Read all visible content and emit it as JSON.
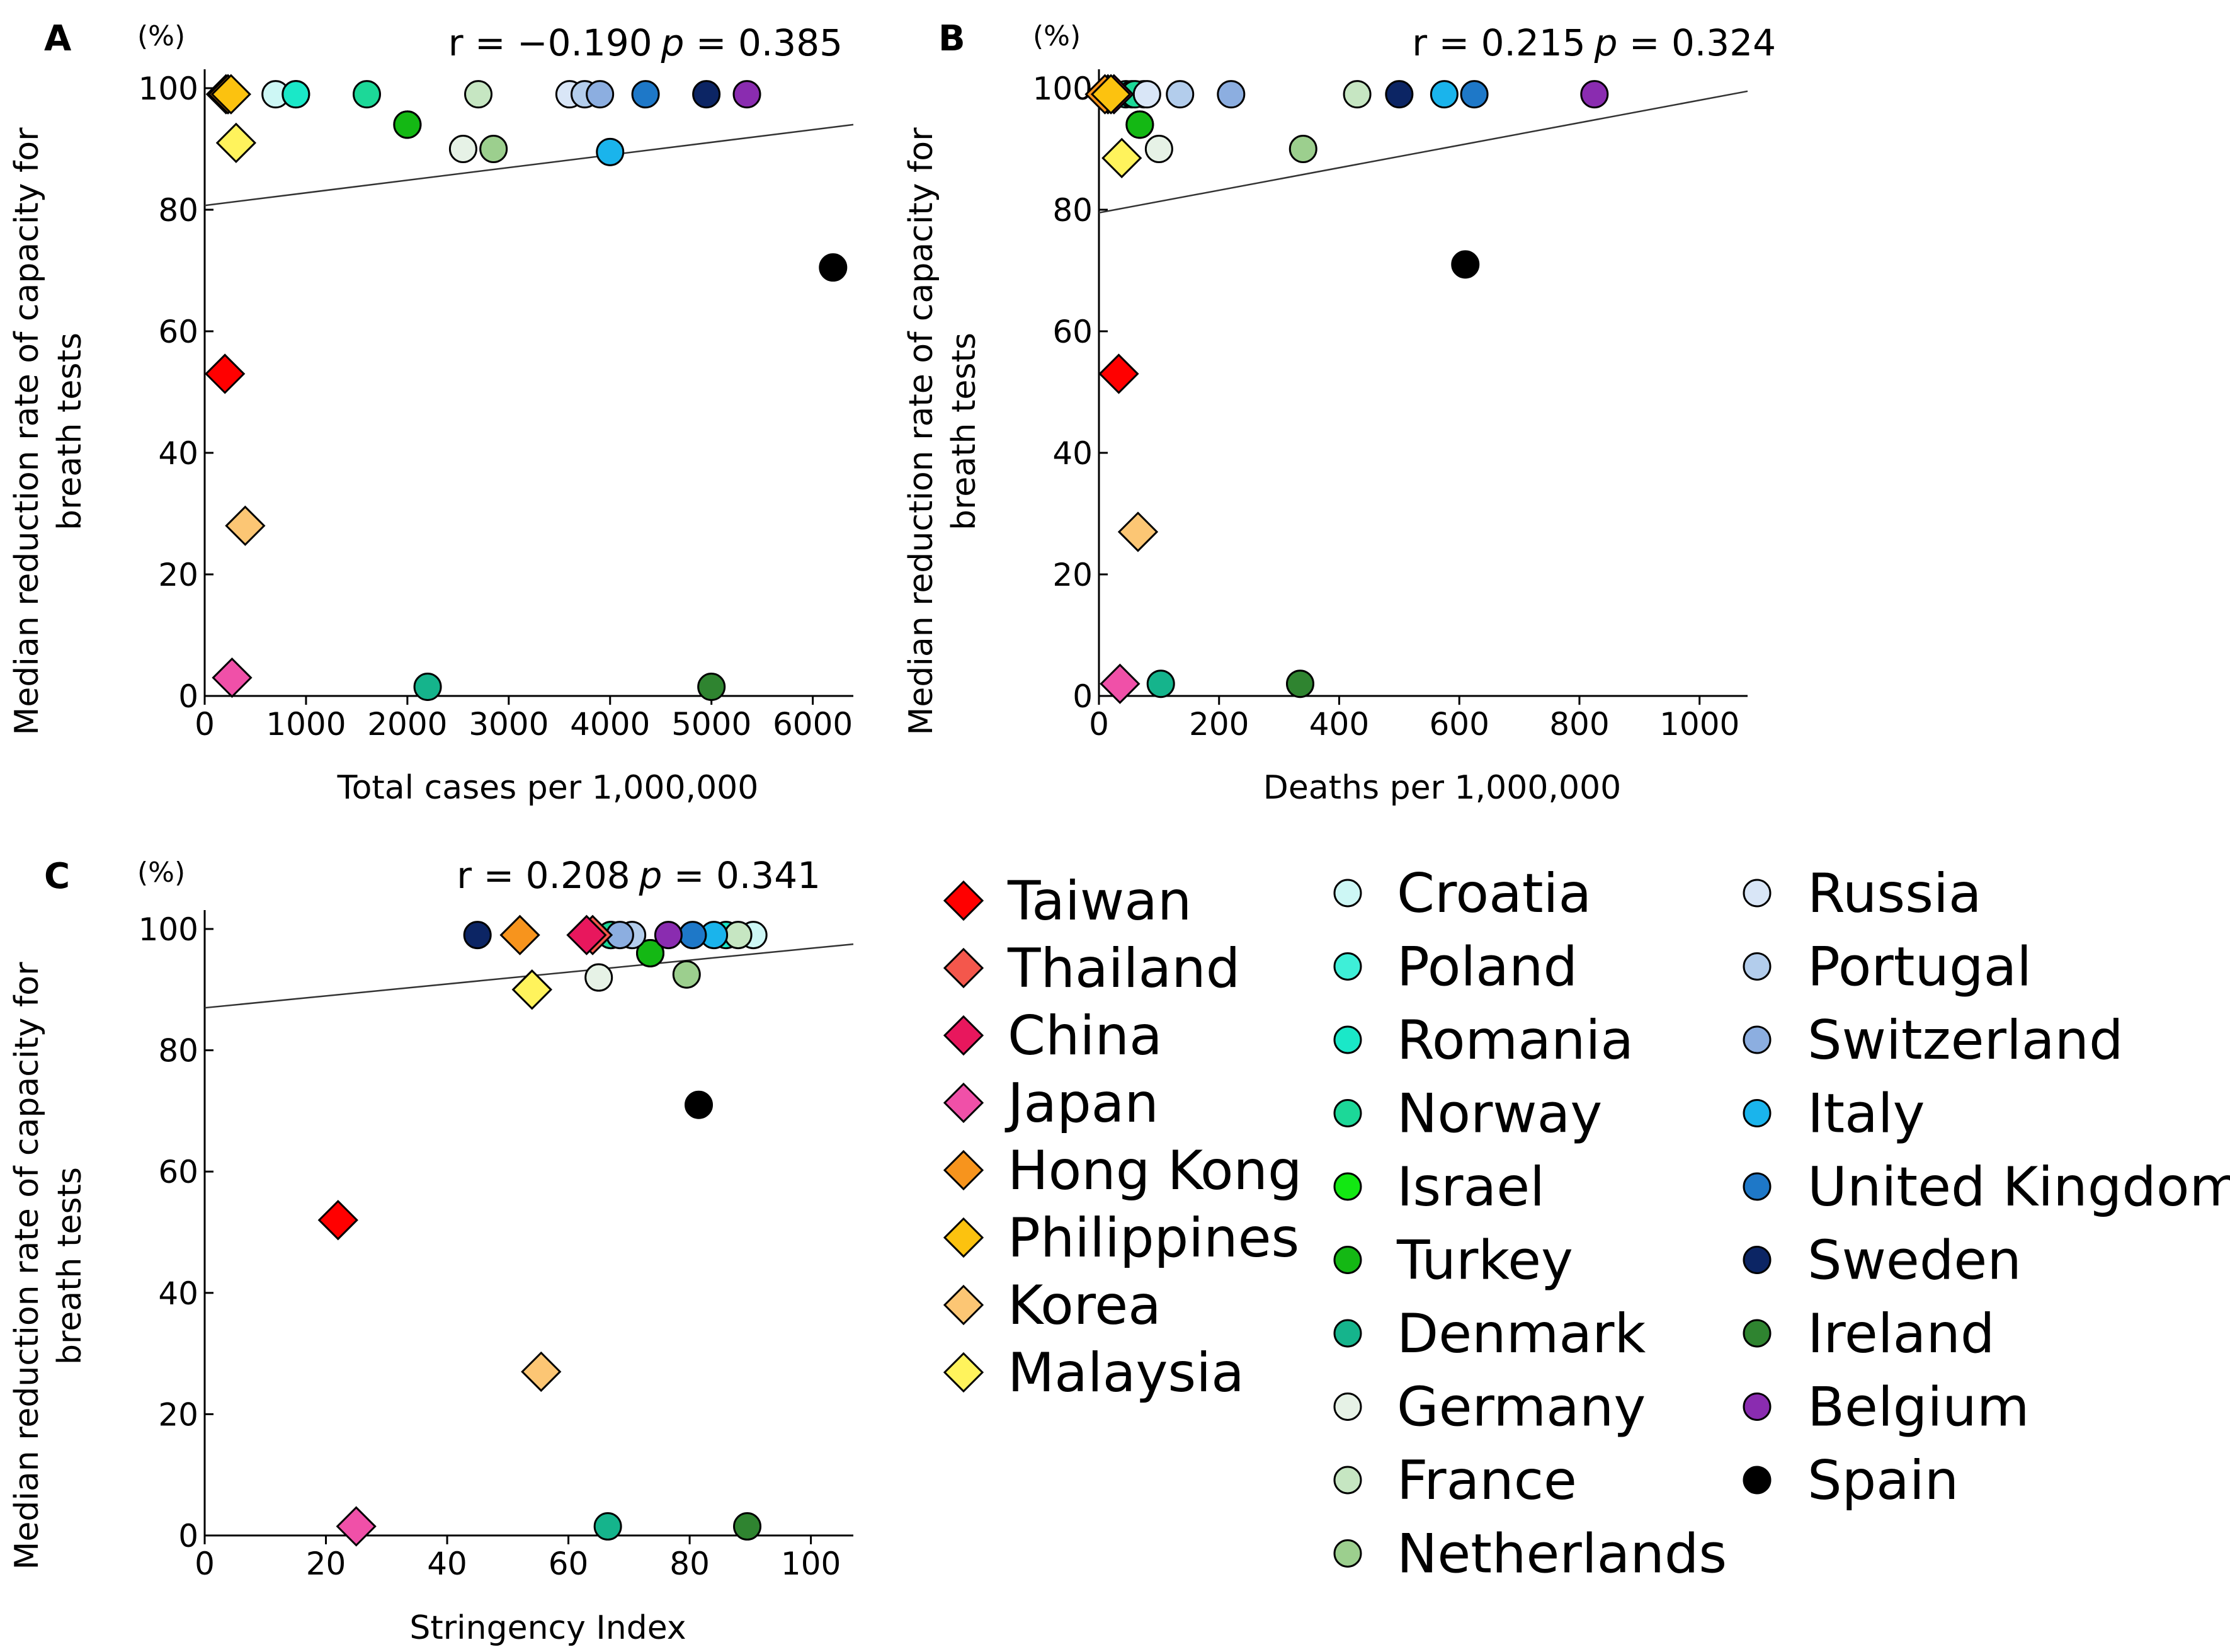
{
  "countries": [
    {
      "key": "taiwan",
      "name": "Taiwan",
      "marker": "diamond",
      "color": "#ff0000"
    },
    {
      "key": "thailand",
      "name": "Thailand",
      "marker": "diamond",
      "color": "#f4574c"
    },
    {
      "key": "china",
      "name": "China",
      "marker": "diamond",
      "color": "#e8175d"
    },
    {
      "key": "japan",
      "name": "Japan",
      "marker": "diamond",
      "color": "#f050a8"
    },
    {
      "key": "hongkong",
      "name": "Hong Kong",
      "marker": "diamond",
      "color": "#f7941d"
    },
    {
      "key": "philippines",
      "name": "Philippines",
      "marker": "diamond",
      "color": "#fcc20f"
    },
    {
      "key": "korea",
      "name": "Korea",
      "marker": "diamond",
      "color": "#fcc674"
    },
    {
      "key": "malaysia",
      "name": "Malaysia",
      "marker": "diamond",
      "color": "#fff35c"
    },
    {
      "key": "croatia",
      "name": "Croatia",
      "marker": "circle",
      "color": "#cdf7f5"
    },
    {
      "key": "poland",
      "name": "Poland",
      "marker": "circle",
      "color": "#3eefd8"
    },
    {
      "key": "romania",
      "name": "Romania",
      "marker": "circle",
      "color": "#1ae8c8"
    },
    {
      "key": "norway",
      "name": "Norway",
      "marker": "circle",
      "color": "#1cd898"
    },
    {
      "key": "israel",
      "name": "Israel",
      "marker": "circle",
      "color": "#12e812"
    },
    {
      "key": "turkey",
      "name": "Turkey",
      "marker": "circle",
      "color": "#14b814"
    },
    {
      "key": "denmark",
      "name": "Denmark",
      "marker": "circle",
      "color": "#15b48c"
    },
    {
      "key": "germany",
      "name": "Germany",
      "marker": "circle",
      "color": "#e6f2e6"
    },
    {
      "key": "france",
      "name": "France",
      "marker": "circle",
      "color": "#c6e6c2"
    },
    {
      "key": "netherlands",
      "name": "Netherlands",
      "marker": "circle",
      "color": "#9ccf8e"
    },
    {
      "key": "russia",
      "name": "Russia",
      "marker": "circle",
      "color": "#d9e6f7"
    },
    {
      "key": "portugal",
      "name": "Portugal",
      "marker": "circle",
      "color": "#b3cdec"
    },
    {
      "key": "switzerland",
      "name": "Switzerland",
      "marker": "circle",
      "color": "#8caee0"
    },
    {
      "key": "italy",
      "name": "Italy",
      "marker": "circle",
      "color": "#1ab4ec"
    },
    {
      "key": "uk",
      "name": "United Kingdom",
      "marker": "circle",
      "color": "#1e78c8"
    },
    {
      "key": "sweden",
      "name": "Sweden",
      "marker": "circle",
      "color": "#0c2564"
    },
    {
      "key": "ireland",
      "name": "Ireland",
      "marker": "circle",
      "color": "#2f8430"
    },
    {
      "key": "belgium",
      "name": "Belgium",
      "marker": "circle",
      "color": "#8a2cb0"
    },
    {
      "key": "spain",
      "name": "Spain",
      "marker": "circle",
      "color": "#000000"
    }
  ],
  "chart_data": [
    {
      "type": "scatter",
      "panel": "A",
      "xlabel": "Total cases per 1,000,000",
      "ylabel": "Median reduction rate of capacity for breath tests",
      "y_unit": "(%)",
      "stat": {
        "r": "r = −0.190",
        "p_label": "p",
        "p_value": " = 0.385"
      },
      "xlim": [
        0,
        6400
      ],
      "ylim": [
        0,
        100
      ],
      "xticks": [
        0,
        1000,
        2000,
        3000,
        4000,
        5000,
        6000
      ],
      "yticks": [
        0,
        20,
        40,
        60,
        80,
        100
      ],
      "fit": {
        "x": [
          0,
          6400
        ],
        "y": [
          80.7,
          94
        ]
      },
      "points": {
        "taiwan": [
          200,
          53
        ],
        "thailand": [
          210,
          99
        ],
        "china": [
          230,
          99
        ],
        "japan": [
          270,
          3
        ],
        "hongkong": [
          230,
          99
        ],
        "philippines": [
          260,
          99
        ],
        "korea": [
          400,
          28
        ],
        "malaysia": [
          310,
          91
        ],
        "croatia": [
          700,
          99
        ],
        "poland": [
          900,
          99
        ],
        "romania": [
          900,
          99
        ],
        "norway": [
          1600,
          99
        ],
        "israel": [
          2000,
          94
        ],
        "turkey": [
          2000,
          94
        ],
        "denmark": [
          2200,
          1.5
        ],
        "germany": [
          2550,
          90
        ],
        "france": [
          2700,
          99
        ],
        "netherlands": [
          2850,
          90
        ],
        "russia": [
          3600,
          99
        ],
        "portugal": [
          3750,
          99
        ],
        "switzerland": [
          3900,
          99
        ],
        "italy": [
          4000,
          89.5
        ],
        "uk": [
          4350,
          99
        ],
        "sweden": [
          4950,
          99
        ],
        "ireland": [
          5000,
          1.5
        ],
        "belgium": [
          5350,
          99
        ],
        "spain": [
          6200,
          70.5
        ]
      }
    },
    {
      "type": "scatter",
      "panel": "B",
      "xlabel": "Deaths per 1,000,000",
      "ylabel": "Median reduction rate of capacity for breath tests",
      "y_unit": "(%)",
      "stat": {
        "r": "r = 0.215",
        "p_label": "p",
        "p_value": " = 0.324"
      },
      "xlim": [
        0,
        1080
      ],
      "ylim": [
        0,
        100
      ],
      "xticks": [
        0,
        200,
        400,
        600,
        800,
        1000
      ],
      "yticks": [
        0,
        20,
        40,
        60,
        80,
        100
      ],
      "fit": {
        "x": [
          0,
          1080
        ],
        "y": [
          79.5,
          99.5
        ]
      },
      "points": {
        "taiwan": [
          33,
          53
        ],
        "thailand": [
          15,
          99
        ],
        "china": [
          25,
          99
        ],
        "japan": [
          35,
          2
        ],
        "hongkong": [
          10,
          99
        ],
        "philippines": [
          20,
          99
        ],
        "korea": [
          65,
          27
        ],
        "malaysia": [
          38,
          88.5
        ],
        "croatia": [
          75,
          99
        ],
        "poland": [
          45,
          99
        ],
        "romania": [
          55,
          99
        ],
        "norway": [
          60,
          99
        ],
        "israel": [
          68,
          94
        ],
        "turkey": [
          68,
          94
        ],
        "denmark": [
          103,
          2
        ],
        "germany": [
          100,
          90
        ],
        "france": [
          430,
          99
        ],
        "netherlands": [
          340,
          90
        ],
        "russia": [
          80,
          99
        ],
        "portugal": [
          135,
          99
        ],
        "switzerland": [
          220,
          99
        ],
        "italy": [
          575,
          99
        ],
        "uk": [
          625,
          99
        ],
        "sweden": [
          500,
          99
        ],
        "ireland": [
          335,
          2
        ],
        "belgium": [
          825,
          99
        ],
        "spain": [
          610,
          71
        ]
      }
    },
    {
      "type": "scatter",
      "panel": "C",
      "xlabel": "Stringency Index",
      "ylabel": "Median reduction rate of capacity for breath tests",
      "y_unit": "(%)",
      "stat": {
        "r": "r = 0.208",
        "p_label": "p",
        "p_value": " = 0.341"
      },
      "xlim": [
        0,
        107
      ],
      "ylim": [
        0,
        100
      ],
      "xticks": [
        0,
        20,
        40,
        60,
        80,
        100
      ],
      "yticks": [
        0,
        20,
        40,
        60,
        80,
        100
      ],
      "fit": {
        "x": [
          0,
          107
        ],
        "y": [
          87,
          97.5
        ]
      },
      "points": {
        "taiwan": [
          22,
          52
        ],
        "thailand": [
          64,
          99
        ],
        "china": [
          63,
          99
        ],
        "japan": [
          25,
          1.5
        ],
        "hongkong": [
          52,
          99
        ],
        "philippines": [
          54,
          90
        ],
        "korea": [
          55.5,
          27
        ],
        "malaysia": [
          54,
          90
        ],
        "croatia": [
          90.5,
          99
        ],
        "poland": [
          67,
          99
        ],
        "romania": [
          86,
          99
        ],
        "norway": [
          67,
          99
        ],
        "israel": [
          73.5,
          96
        ],
        "turkey": [
          73.5,
          96
        ],
        "denmark": [
          66.5,
          1.5
        ],
        "germany": [
          65,
          92
        ],
        "france": [
          88,
          99
        ],
        "netherlands": [
          79.5,
          92.5
        ],
        "russia": [
          63,
          99
        ],
        "portugal": [
          70.5,
          99
        ],
        "switzerland": [
          68.5,
          99
        ],
        "italy": [
          84,
          99
        ],
        "uk": [
          80.5,
          99
        ],
        "sweden": [
          45,
          99
        ],
        "ireland": [
          89.5,
          1.5
        ],
        "belgium": [
          76.5,
          99
        ],
        "spain": [
          81.5,
          71
        ]
      }
    }
  ]
}
